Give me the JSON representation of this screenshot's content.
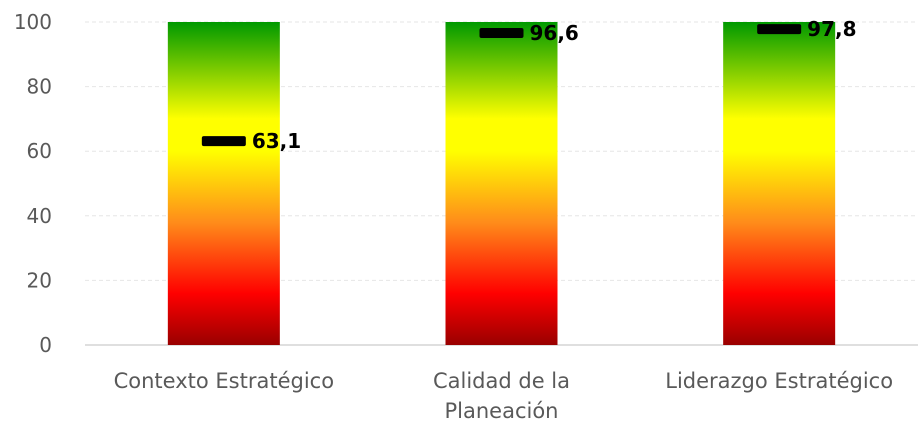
{
  "chart_data": {
    "type": "bar",
    "categories": [
      [
        "Contexto Estratégico"
      ],
      [
        "Calidad de la",
        "Planeación"
      ],
      [
        "Liderazgo Estratégico"
      ]
    ],
    "series": [
      {
        "values": [
          100,
          100,
          100
        ]
      },
      {
        "values": [
          63.1,
          96.6,
          97.8
        ]
      }
    ],
    "data_labels": [
      "63,1",
      "96,6",
      "97,8"
    ],
    "ylim": [
      0,
      100
    ],
    "y_ticks": [
      "0",
      "20",
      "40",
      "60",
      "80",
      "100"
    ],
    "grid": true,
    "legend": "none",
    "colors": {
      "gradient_top": "#009900",
      "gradient_upper": "#ffff00",
      "gradient_mid": "#ff8c1a",
      "gradient_lower": "#ff0000",
      "gradient_bottom": "#990000",
      "marker": "#000000"
    }
  }
}
